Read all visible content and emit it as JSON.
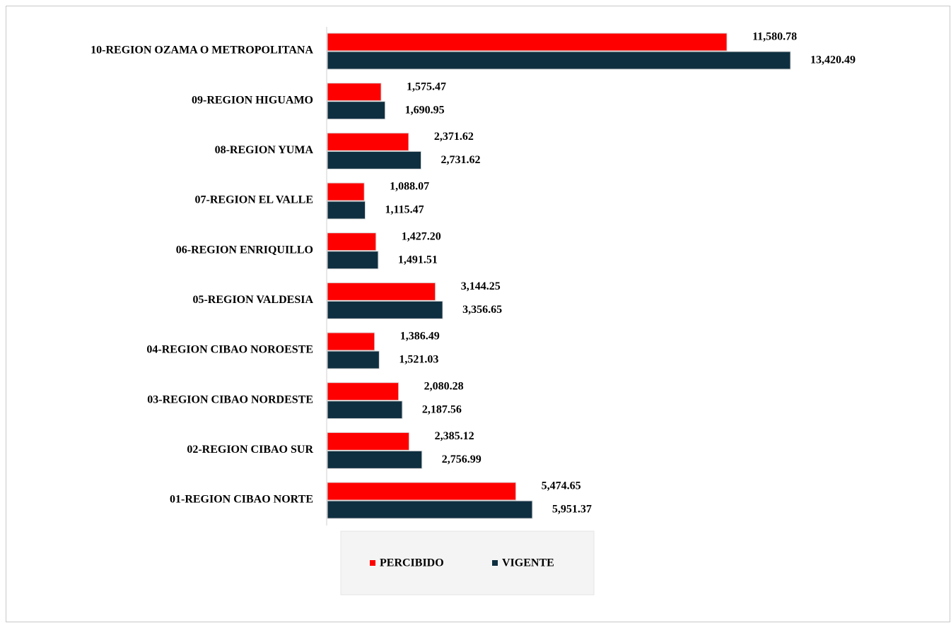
{
  "chart_data": {
    "type": "bar",
    "orientation": "horizontal",
    "categories": [
      "10-REGION OZAMA O METROPOLITANA",
      "09-REGION HIGUAMO",
      "08-REGION YUMA",
      "07-REGION EL VALLE",
      "06-REGION ENRIQUILLO",
      "05-REGION VALDESIA",
      "04-REGION CIBAO NOROESTE",
      "03-REGION CIBAO NORDESTE",
      "02-REGION CIBAO SUR",
      "01-REGION CIBAO NORTE"
    ],
    "series": [
      {
        "name": "PERCIBIDO",
        "color": "#ff0000",
        "values": [
          11580.78,
          1575.47,
          2371.62,
          1088.07,
          1427.2,
          3144.25,
          1386.49,
          2080.28,
          2385.12,
          5474.65
        ],
        "value_labels": [
          "11,580.78",
          "1,575.47",
          "2,371.62",
          "1,088.07",
          "1,427.20",
          "3,144.25",
          "1,386.49",
          "2,080.28",
          "2,385.12",
          "5,474.65"
        ]
      },
      {
        "name": "VIGENTE",
        "color": "#0e2f40",
        "values": [
          13420.49,
          1690.95,
          2731.62,
          1115.47,
          1491.51,
          3356.65,
          1521.03,
          2187.56,
          2756.99,
          5951.37
        ],
        "value_labels": [
          "13,420.49",
          "1,690.95",
          "2,731.62",
          "1,115.47",
          "1,491.51",
          "3,356.65",
          "1,521.03",
          "2,187.56",
          "2,756.99",
          "5,951.37"
        ]
      }
    ],
    "legend": "bottom"
  }
}
